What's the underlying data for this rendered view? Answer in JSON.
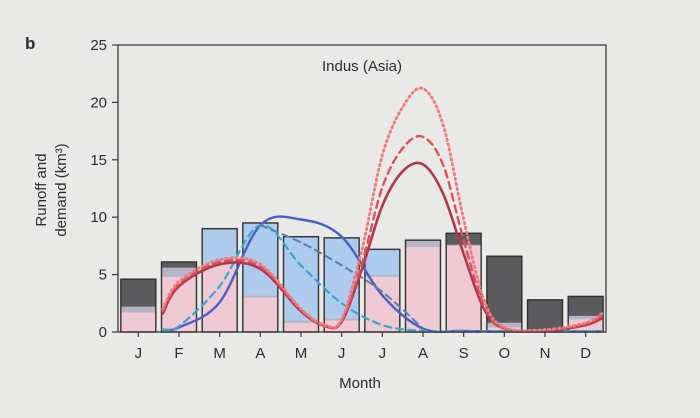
{
  "panel_label": "b",
  "chart_data": {
    "type": "bar",
    "title": "Indus (Asia)",
    "xlabel": "Month",
    "ylabel": "Runoff and demand (km³)",
    "ylim": [
      0,
      25
    ],
    "yticks": [
      0,
      5,
      10,
      15,
      20,
      25
    ],
    "categories": [
      "J",
      "F",
      "M",
      "A",
      "M",
      "J",
      "J",
      "A",
      "S",
      "O",
      "N",
      "D"
    ],
    "grid": false,
    "bars": [
      {
        "total": 4.6,
        "segments": [
          {
            "value": 1.7,
            "color": "#efc9d4"
          },
          {
            "value": 0.5,
            "color": "#b4b6c8"
          },
          {
            "value": 2.4,
            "color": "#5c5c5e"
          }
        ]
      },
      {
        "total": 6.1,
        "segments": [
          {
            "value": 4.8,
            "color": "#efc9d4"
          },
          {
            "value": 0.8,
            "color": "#b4b6c8"
          },
          {
            "value": 0.5,
            "color": "#5c5c5e"
          }
        ]
      },
      {
        "total": 9.0,
        "segments": [
          {
            "value": 5.9,
            "color": "#efc9d4"
          },
          {
            "value": 3.1,
            "color": "#aecbee"
          }
        ]
      },
      {
        "total": 9.5,
        "segments": [
          {
            "value": 3.0,
            "color": "#efc9d4"
          },
          {
            "value": 0.2,
            "color": "#b4b6c8"
          },
          {
            "value": 6.3,
            "color": "#aecbee"
          }
        ]
      },
      {
        "total": 8.3,
        "segments": [
          {
            "value": 0.8,
            "color": "#efc9d4"
          },
          {
            "value": 0.2,
            "color": "#b4b6c8"
          },
          {
            "value": 7.3,
            "color": "#aecbee"
          }
        ]
      },
      {
        "total": 8.2,
        "segments": [
          {
            "value": 1.0,
            "color": "#efc9d4"
          },
          {
            "value": 0.2,
            "color": "#b4b6c8"
          },
          {
            "value": 7.0,
            "color": "#aecbee"
          }
        ]
      },
      {
        "total": 7.2,
        "segments": [
          {
            "value": 4.8,
            "color": "#efc9d4"
          },
          {
            "value": 0.2,
            "color": "#b4b6c8"
          },
          {
            "value": 2.2,
            "color": "#aecbee"
          }
        ]
      },
      {
        "total": 8.0,
        "segments": [
          {
            "value": 7.4,
            "color": "#efc9d4"
          },
          {
            "value": 0.6,
            "color": "#b4b6c8"
          }
        ]
      },
      {
        "total": 8.6,
        "segments": [
          {
            "value": 7.5,
            "color": "#efc9d4"
          },
          {
            "value": 0.1,
            "color": "#b4b6c8"
          },
          {
            "value": 1.0,
            "color": "#5c5c5e"
          }
        ]
      },
      {
        "total": 6.6,
        "segments": [
          {
            "value": 0.4,
            "color": "#efc9d4"
          },
          {
            "value": 0.4,
            "color": "#b4b6c8"
          },
          {
            "value": 5.8,
            "color": "#5c5c5e"
          }
        ]
      },
      {
        "total": 2.8,
        "segments": [
          {
            "value": 0.1,
            "color": "#efc9d4"
          },
          {
            "value": 0.1,
            "color": "#b4b6c8"
          },
          {
            "value": 2.6,
            "color": "#5c5c5e"
          }
        ]
      },
      {
        "total": 3.1,
        "segments": [
          {
            "value": 1.1,
            "color": "#efc9d4"
          },
          {
            "value": 0.3,
            "color": "#b4b6c8"
          },
          {
            "value": 1.7,
            "color": "#5c5c5e"
          }
        ]
      }
    ],
    "series": [
      {
        "color": "#4a5ec4",
        "dash": "solid",
        "width": 2.4,
        "x": [
          0.6,
          1,
          2,
          3,
          4,
          5,
          6,
          7,
          8,
          9,
          10,
          11.4
        ],
        "y": [
          0.2,
          0.4,
          2.6,
          9.3,
          9.8,
          8.3,
          3.2,
          0.3,
          0.1,
          0.05,
          0.05,
          0.05
        ]
      },
      {
        "color": "#35a9c9",
        "dash": "dashed",
        "width": 2.2,
        "x": [
          0.6,
          1,
          2,
          3,
          4,
          5,
          6,
          7,
          8,
          9,
          10,
          11.4
        ],
        "y": [
          0.2,
          0.5,
          4.0,
          9.3,
          5.8,
          2.5,
          0.6,
          0.1,
          0.05,
          0.05,
          0.05,
          0.05
        ]
      },
      {
        "color": "#5a7fa8",
        "dash": "dashed",
        "width": 2.0,
        "x": [
          3,
          4,
          5,
          6,
          7
        ],
        "y": [
          9.3,
          7.8,
          5.8,
          3.5,
          0.3
        ]
      },
      {
        "color": "#b0394c",
        "dash": "solid",
        "width": 2.6,
        "x": [
          0.6,
          1,
          2,
          3,
          4,
          4.6,
          5,
          5.5,
          6,
          6.5,
          7,
          7.5,
          8,
          8.5,
          9,
          10,
          11,
          11.4
        ],
        "y": [
          1.6,
          4.0,
          5.9,
          5.5,
          1.8,
          0.5,
          0.9,
          5.5,
          11.0,
          14.0,
          14.6,
          12.0,
          6.8,
          2.0,
          0.3,
          0.1,
          0.6,
          1.2
        ]
      },
      {
        "color": "#e0505b",
        "dash": "dashed",
        "width": 2.4,
        "x": [
          0.6,
          1,
          2,
          3,
          4,
          4.6,
          5,
          5.5,
          6,
          6.5,
          7,
          7.5,
          8,
          8.5,
          9,
          10,
          11,
          11.4
        ],
        "y": [
          1.8,
          4.2,
          6.1,
          5.7,
          1.9,
          0.5,
          1.0,
          6.0,
          12.6,
          16.0,
          17.0,
          14.5,
          8.0,
          2.3,
          0.3,
          0.1,
          0.7,
          1.4
        ]
      },
      {
        "color": "#ef7a80",
        "dash": "dotted",
        "width": 2.8,
        "x": [
          0.6,
          1,
          2,
          3,
          4,
          4.6,
          5,
          5.5,
          6,
          6.5,
          7,
          7.5,
          8,
          8.5,
          9,
          10,
          11,
          11.4
        ],
        "y": [
          2.0,
          4.4,
          6.3,
          5.9,
          2.0,
          0.6,
          1.1,
          7.2,
          15.4,
          19.6,
          21.2,
          18.0,
          9.8,
          2.8,
          0.4,
          0.2,
          0.8,
          1.6
        ]
      }
    ]
  }
}
